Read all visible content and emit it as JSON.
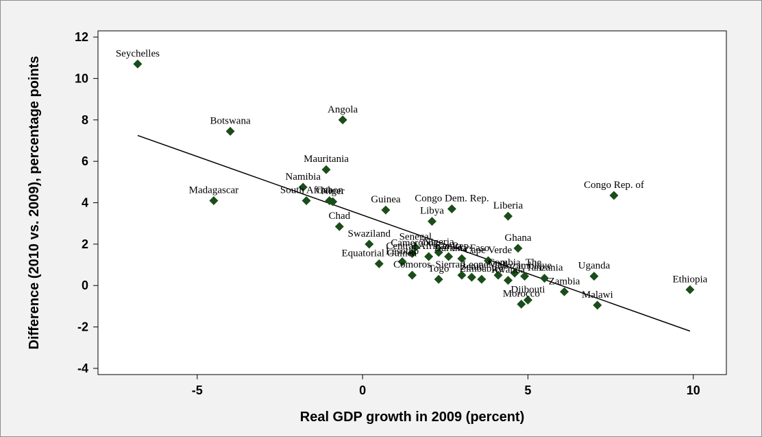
{
  "chart_data": {
    "type": "scatter",
    "xlabel": "Real GDP growth in 2009 (percent)",
    "ylabel": "Difference (2010 vs. 2009), percentage points",
    "xlim": [
      -8,
      11
    ],
    "ylim": [
      -4.3,
      12.3
    ],
    "x_ticks": [
      -5,
      0,
      5,
      10
    ],
    "y_ticks": [
      -4,
      -2,
      0,
      2,
      4,
      6,
      8,
      10,
      12
    ],
    "grid": false,
    "legend": "none",
    "colors": {
      "marker": "#1a4d1a",
      "trend": "#000000",
      "frame": "#f2f2f2",
      "plot": "#ffffff"
    },
    "trendline": {
      "x": [
        -6.8,
        9.9
      ],
      "y": [
        7.25,
        -2.2
      ]
    },
    "points": [
      {
        "x": -6.8,
        "y": 10.7,
        "label": "Seychelles"
      },
      {
        "x": -4.0,
        "y": 7.45,
        "label": "Botswana"
      },
      {
        "x": -0.6,
        "y": 8.0,
        "label": "Angola"
      },
      {
        "x": -4.5,
        "y": 4.1,
        "label": "Madagascar"
      },
      {
        "x": -1.1,
        "y": 5.6,
        "label": "Mauritania"
      },
      {
        "x": -1.8,
        "y": 4.75,
        "label": "Namibia"
      },
      {
        "x": -1.7,
        "y": 4.1,
        "label": "South Africa"
      },
      {
        "x": -1.0,
        "y": 4.1,
        "label": "Gabon"
      },
      {
        "x": -0.9,
        "y": 4.05,
        "label": "Niger"
      },
      {
        "x": -0.7,
        "y": 2.85,
        "label": "Chad"
      },
      {
        "x": 0.7,
        "y": 3.65,
        "label": "Guinea"
      },
      {
        "x": 2.7,
        "y": 3.7,
        "label": "Congo Dem. Rep."
      },
      {
        "x": 2.1,
        "y": 3.1,
        "label": "Libya"
      },
      {
        "x": 4.4,
        "y": 3.35,
        "label": "Liberia"
      },
      {
        "x": 7.6,
        "y": 4.35,
        "label": "Congo Rep. of"
      },
      {
        "x": 0.2,
        "y": 2.0,
        "label": "Swaziland"
      },
      {
        "x": 1.6,
        "y": 1.85,
        "label": "Senegal"
      },
      {
        "x": 2.3,
        "y": 1.6,
        "label": "Nigeria"
      },
      {
        "x": 2.0,
        "y": 1.4,
        "label": "Central African Rep."
      },
      {
        "x": 1.5,
        "y": 1.55,
        "label": "Cameroon"
      },
      {
        "x": 2.6,
        "y": 1.4,
        "label": "Kenya"
      },
      {
        "x": 3.0,
        "y": 1.3,
        "label": "Burkina Faso"
      },
      {
        "x": 3.8,
        "y": 1.2,
        "label": "Cape Verde"
      },
      {
        "x": 4.7,
        "y": 1.8,
        "label": "Ghana"
      },
      {
        "x": 0.5,
        "y": 1.05,
        "label": "Equatorial Guinea"
      },
      {
        "x": 1.2,
        "y": 1.15,
        "label": "Lesotho"
      },
      {
        "x": 1.5,
        "y": 0.5,
        "label": "Comoros"
      },
      {
        "x": 2.3,
        "y": 0.3,
        "label": "Togo"
      },
      {
        "x": 3.0,
        "y": 0.5,
        "label": "Sierra Leone"
      },
      {
        "x": 3.3,
        "y": 0.4,
        "label": "Benin"
      },
      {
        "x": 3.6,
        "y": 0.3,
        "label": "Zimbabwe"
      },
      {
        "x": 4.1,
        "y": 0.5,
        "label": "Mali"
      },
      {
        "x": 4.6,
        "y": 0.6,
        "label": "Gambia, The"
      },
      {
        "x": 4.9,
        "y": 0.45,
        "label": "Mozambique"
      },
      {
        "x": 5.5,
        "y": 0.35,
        "label": "Tanzania"
      },
      {
        "x": 4.4,
        "y": 0.25,
        "label": "Rwanda"
      },
      {
        "x": 7.0,
        "y": 0.45,
        "label": "Uganda"
      },
      {
        "x": 6.1,
        "y": -0.3,
        "label": "Zambia"
      },
      {
        "x": 4.8,
        "y": -0.9,
        "label": "Morocco"
      },
      {
        "x": 5.0,
        "y": -0.7,
        "label": "Djibouti"
      },
      {
        "x": 7.1,
        "y": -0.95,
        "label": "Malawi"
      },
      {
        "x": 9.9,
        "y": -0.2,
        "label": "Ethiopia"
      }
    ]
  }
}
